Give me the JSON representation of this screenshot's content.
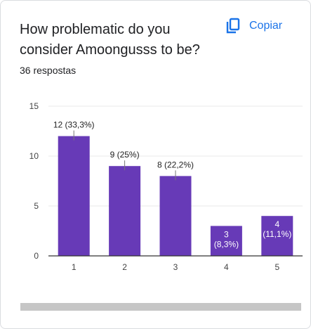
{
  "header": {
    "title": "How problematic do you consider Amoongusss to be?",
    "responses": "36 respostas",
    "copy_label": "Copiar",
    "copy_icon": "copy-icon"
  },
  "chart_data": {
    "type": "bar",
    "categories": [
      "1",
      "2",
      "3",
      "4",
      "5"
    ],
    "values": [
      12,
      9,
      8,
      3,
      4
    ],
    "data_labels": [
      "12 (33,3%)",
      "9 (25%)",
      "8 (22,2%)",
      "3 (8,3%)",
      "4 (11,1%)"
    ],
    "y_ticks": [
      0,
      5,
      10,
      15
    ],
    "ylim": [
      0,
      15
    ],
    "bar_color": "#673ab7",
    "grid": true
  }
}
